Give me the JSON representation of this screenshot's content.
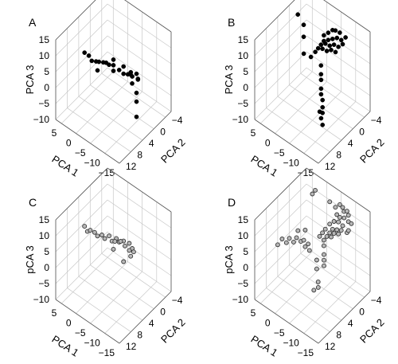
{
  "colors": {
    "filled_marker": "#000000",
    "open_marker_fill": "#b8b8b8",
    "open_marker_stroke": "#333333",
    "grid": "#c8c8c8",
    "box_edge": "#555555"
  },
  "chart_data": [
    {
      "type": "scatter",
      "panel_label": "A",
      "marker": "filled",
      "xlabel": "PCA 1",
      "ylabel": "PCA 2",
      "zlabel": "PCA 3",
      "xticks": [
        "5",
        "0",
        "−5",
        "−10",
        "−15"
      ],
      "yticks": [
        "−4",
        "0",
        "4",
        "8",
        "12"
      ],
      "zticks": [
        "15",
        "10",
        "5",
        "0",
        "−5",
        "−10"
      ],
      "xlim": [
        -15,
        7
      ],
      "ylim": [
        -6,
        12
      ],
      "zlim": [
        -10,
        15
      ],
      "grid": true,
      "points": [
        [
          5,
          4,
          5
        ],
        [
          3.5,
          4,
          5
        ],
        [
          2.5,
          4,
          4
        ],
        [
          1.5,
          3.5,
          4
        ],
        [
          0.5,
          3.5,
          4.5
        ],
        [
          -0.5,
          3,
          4.5
        ],
        [
          -1.5,
          3,
          5
        ],
        [
          -2.5,
          3,
          5
        ],
        [
          -3.5,
          2.5,
          5
        ],
        [
          -4,
          3,
          4
        ],
        [
          0,
          4.5,
          3
        ],
        [
          -3,
          2,
          6
        ],
        [
          -5,
          2,
          4
        ],
        [
          -6,
          1.5,
          3
        ],
        [
          -5.5,
          1,
          4.5
        ],
        [
          -7,
          1,
          3
        ],
        [
          -7.5,
          0.5,
          3.5
        ],
        [
          -8,
          0.5,
          2.5
        ],
        [
          -9,
          0,
          3.5
        ],
        [
          -9.5,
          0,
          2
        ],
        [
          -10,
          0.5,
          3
        ],
        [
          -7,
          0,
          2
        ],
        [
          -6.5,
          -1,
          -2
        ],
        [
          -8,
          -1,
          -4
        ],
        [
          -8.5,
          -0.5,
          -6
        ],
        [
          -9,
          0,
          -10
        ]
      ]
    },
    {
      "type": "scatter",
      "panel_label": "B",
      "marker": "filled",
      "xlabel": "PCA 1",
      "ylabel": "PCA 2",
      "zlabel": "PCA 3",
      "xticks": [
        "5",
        "0",
        "−5",
        "−10",
        "−15"
      ],
      "yticks": [
        "−4",
        "0",
        "4",
        "8",
        "12"
      ],
      "zticks": [
        "15",
        "10",
        "5",
        "0",
        "−5",
        "−10"
      ],
      "xlim": [
        -15,
        7
      ],
      "ylim": [
        -6,
        12
      ],
      "zlim": [
        -10,
        15
      ],
      "grid": true,
      "points": [
        [
          4,
          0,
          14
        ],
        [
          2,
          0,
          12
        ],
        [
          1.5,
          0.5,
          9
        ],
        [
          0,
          2,
          6
        ],
        [
          -3,
          -2,
          10
        ],
        [
          -4,
          -2.5,
          11
        ],
        [
          -5,
          -3,
          12
        ],
        [
          -6,
          -3,
          12.5
        ],
        [
          -7,
          -3.5,
          12
        ],
        [
          -3.5,
          -1.5,
          9
        ],
        [
          -4.5,
          -2,
          9.5
        ],
        [
          -5.5,
          -2.5,
          10
        ],
        [
          -6.5,
          -3,
          10.5
        ],
        [
          -7.5,
          -3.5,
          10
        ],
        [
          -3,
          -1,
          8
        ],
        [
          -4,
          -1.5,
          8.5
        ],
        [
          -5,
          -2,
          8
        ],
        [
          -6,
          -2.5,
          8.5
        ],
        [
          -7,
          -3,
          8
        ],
        [
          -2.5,
          -0.5,
          7
        ],
        [
          -3.5,
          -1,
          7
        ],
        [
          -4.5,
          -1.5,
          6.5
        ],
        [
          -5.5,
          -2,
          7
        ],
        [
          -6.5,
          -2.5,
          6.5
        ],
        [
          -8,
          -3.5,
          9
        ],
        [
          -8.5,
          -4,
          11
        ],
        [
          -2,
          0,
          6
        ],
        [
          -1.5,
          1,
          5
        ],
        [
          -4,
          0,
          3
        ],
        [
          -4.5,
          0.5,
          1
        ],
        [
          -5,
          1,
          0
        ],
        [
          -5.5,
          1.5,
          -2
        ],
        [
          -6,
          2,
          -3
        ],
        [
          -6.5,
          2,
          -4.5
        ],
        [
          -7,
          2.5,
          -6
        ],
        [
          -7.5,
          3,
          -7
        ],
        [
          -6,
          2.5,
          -8
        ],
        [
          -7,
          3,
          -9
        ],
        [
          -8,
          3.5,
          -10
        ]
      ]
    },
    {
      "type": "scatter",
      "panel_label": "C",
      "marker": "open",
      "xlabel": "PCA 1",
      "ylabel": "PCA 2",
      "zlabel": "pCA 3",
      "xticks": [
        "5",
        "0",
        "−5",
        "−10",
        "−15"
      ],
      "yticks": [
        "−4",
        "0",
        "4",
        "8",
        "12"
      ],
      "zticks": [
        "15",
        "10",
        "5",
        "0",
        "−5",
        "−10"
      ],
      "xlim": [
        -15,
        7
      ],
      "ylim": [
        -6,
        12
      ],
      "zlim": [
        -10,
        15
      ],
      "grid": true,
      "points": [
        [
          5,
          4,
          7
        ],
        [
          4,
          4,
          6
        ],
        [
          3,
          4,
          7
        ],
        [
          2,
          3.5,
          6.5
        ],
        [
          1,
          3.5,
          6
        ],
        [
          0,
          3,
          6.5
        ],
        [
          -1,
          3,
          6
        ],
        [
          -2,
          2.5,
          7
        ],
        [
          -3,
          2.5,
          6
        ],
        [
          -4,
          2,
          7
        ],
        [
          -5,
          2,
          6.5
        ],
        [
          -6,
          1.5,
          7
        ],
        [
          -3,
          1.5,
          5
        ],
        [
          -4.5,
          1,
          5.5
        ],
        [
          -6,
          1,
          5
        ],
        [
          -7,
          0.5,
          6
        ],
        [
          -8,
          0.5,
          5
        ],
        [
          -6.5,
          0,
          3
        ],
        [
          -8,
          0,
          3.5
        ],
        [
          -7,
          0,
          1.5
        ],
        [
          -3,
          2,
          3
        ],
        [
          -5,
          0.5,
          -1
        ]
      ]
    },
    {
      "type": "scatter",
      "panel_label": "D",
      "marker": "open",
      "xlabel": "PCA 1",
      "ylabel": "PCA 2",
      "zlabel": "pCA 3",
      "xticks": [
        "5",
        "0",
        "−5",
        "−10",
        "−15"
      ],
      "yticks": [
        "−4",
        "0",
        "4",
        "8",
        "12"
      ],
      "zticks": [
        "15",
        "10",
        "5",
        "0",
        "−5",
        "−10"
      ],
      "xlim": [
        -15,
        7
      ],
      "ylim": [
        -6,
        12
      ],
      "zlim": [
        -10,
        15
      ],
      "grid": true,
      "points": [
        [
          5,
          6,
          3
        ],
        [
          4,
          5.5,
          5
        ],
        [
          3,
          5,
          4
        ],
        [
          2,
          5,
          6
        ],
        [
          1,
          4.5,
          5
        ],
        [
          0,
          4.5,
          7
        ],
        [
          -1,
          4,
          6
        ],
        [
          -2,
          4,
          7
        ],
        [
          -3,
          3.5,
          6
        ],
        [
          -1.5,
          3,
          9
        ],
        [
          0.5,
          3.5,
          8
        ],
        [
          0,
          -2,
          16
        ],
        [
          0.5,
          -1.5,
          15
        ],
        [
          -4,
          -3,
          14
        ],
        [
          -5,
          -4,
          12
        ],
        [
          -6,
          -4.5,
          13
        ],
        [
          -7,
          -5,
          11
        ],
        [
          -6.5,
          -5,
          12
        ],
        [
          -7.5,
          -5.5,
          11
        ],
        [
          -8,
          -5.5,
          10
        ],
        [
          -5.5,
          -4,
          10
        ],
        [
          -6,
          -4.5,
          9
        ],
        [
          -7,
          -5,
          9
        ],
        [
          -8,
          -5.5,
          8
        ],
        [
          -5,
          -3.5,
          8
        ],
        [
          -6,
          -4,
          8
        ],
        [
          -7,
          -4.5,
          7
        ],
        [
          -4,
          -3,
          7
        ],
        [
          -5,
          -3,
          6
        ],
        [
          -6,
          -3.5,
          6
        ],
        [
          -7,
          -4,
          6
        ],
        [
          -3.5,
          -2,
          6
        ],
        [
          -4.5,
          -2.5,
          5
        ],
        [
          -5.5,
          -3,
          5
        ],
        [
          -6.5,
          -3.5,
          5
        ],
        [
          -3,
          -1.5,
          5
        ],
        [
          -4,
          -2,
          4
        ],
        [
          -5,
          -2.5,
          4
        ],
        [
          -2.5,
          -1,
          4
        ],
        [
          -3.5,
          -1.5,
          3
        ],
        [
          -8,
          -5,
          5
        ],
        [
          -8.5,
          -5,
          6
        ],
        [
          -9,
          -5.5,
          8
        ],
        [
          -4,
          -1,
          2
        ],
        [
          -4.5,
          -0.5,
          0
        ],
        [
          -5,
          0,
          -1
        ],
        [
          -5.5,
          0.5,
          -2
        ],
        [
          -3.5,
          1,
          -1
        ],
        [
          -4,
          1.5,
          -3
        ],
        [
          -5,
          2,
          -6
        ],
        [
          -5.5,
          2.5,
          -7
        ],
        [
          -4.5,
          3,
          -8
        ],
        [
          -2,
          2,
          2
        ],
        [
          -1,
          2.5,
          3
        ]
      ]
    }
  ]
}
